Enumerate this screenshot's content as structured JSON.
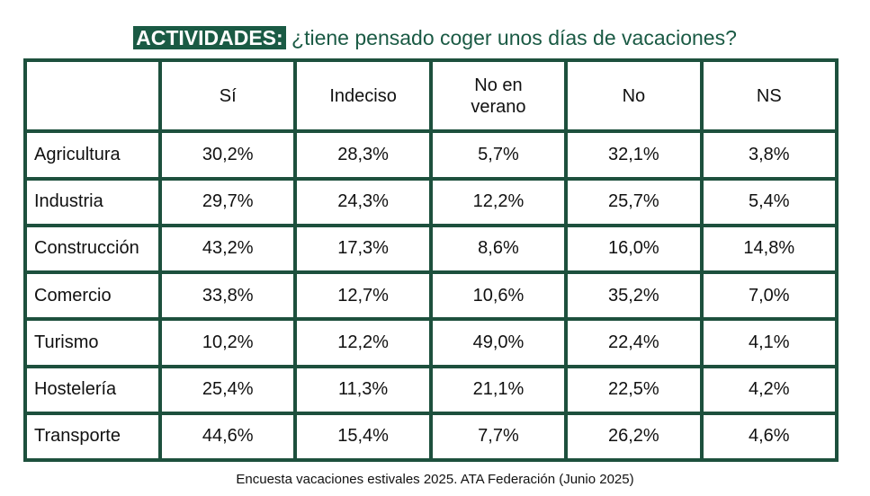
{
  "title": {
    "badge": "ACTIVIDADES:",
    "text": "¿tiene pensado coger unos días de vacaciones?"
  },
  "chart_data": {
    "type": "table",
    "title": "ACTIVIDADES: ¿tiene pensado coger unos días de vacaciones?",
    "columns": [
      "",
      "Sí",
      "Indeciso",
      "No en verano",
      "No",
      "NS"
    ],
    "rows": [
      {
        "label": "Agricultura",
        "values": [
          "30,2%",
          "28,3%",
          "5,7%",
          "32,1%",
          "3,8%"
        ]
      },
      {
        "label": "Industria",
        "values": [
          "29,7%",
          "24,3%",
          "12,2%",
          "25,7%",
          "5,4%"
        ]
      },
      {
        "label": "Construcción",
        "values": [
          "43,2%",
          "17,3%",
          "8,6%",
          "16,0%",
          "14,8%"
        ]
      },
      {
        "label": "Comercio",
        "values": [
          "33,8%",
          "12,7%",
          "10,6%",
          "35,2%",
          "7,0%"
        ]
      },
      {
        "label": "Turismo",
        "values": [
          "10,2%",
          "12,2%",
          "49,0%",
          "22,4%",
          "4,1%"
        ]
      },
      {
        "label": "Hostelería",
        "values": [
          "25,4%",
          "11,3%",
          "21,1%",
          "22,5%",
          "4,2%"
        ]
      },
      {
        "label": "Transporte",
        "values": [
          "44,6%",
          "15,4%",
          "7,7%",
          "26,2%",
          "4,6%"
        ]
      }
    ]
  },
  "footer": "Encuesta vacaciones estivales 2025. ATA Federación (Junio 2025)",
  "colors": {
    "accent": "#1a5a44",
    "border": "#1d503d"
  }
}
